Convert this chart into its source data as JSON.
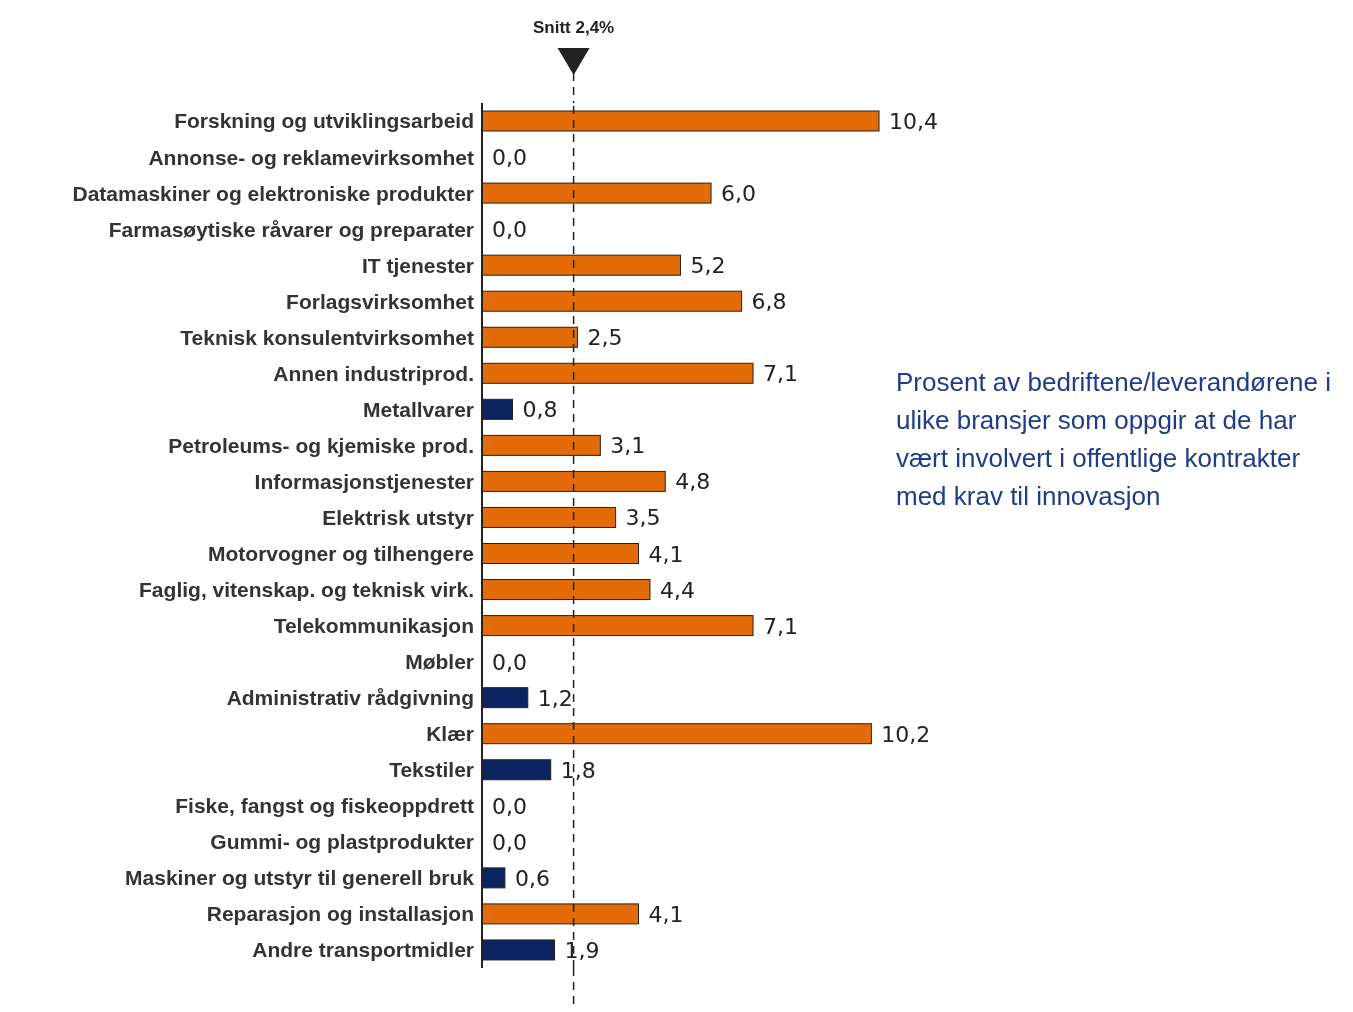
{
  "chart_data": {
    "type": "bar",
    "orientation": "horizontal",
    "categories": [
      "Forskning og utviklingsarbeid",
      "Annonse- og reklamevirksomhet",
      "Datamaskiner og elektroniske produkter",
      "Farmasøytiske råvarer og preparater",
      "IT tjenester",
      "Forlagsvirksomhet",
      "Teknisk konsulentvirksomhet",
      "Annen industriprod.",
      "Metallvarer",
      "Petroleums- og kjemiske prod.",
      "Informasjonstjenester",
      "Elektrisk utstyr",
      "Motorvogner og tilhengere",
      "Faglig, vitenskap. og teknisk virk.",
      "Telekommunikasjon",
      "Møbler",
      "Administrativ rådgivning",
      "Klær",
      "Tekstiler",
      "Fiske, fangst og fiskeoppdrett",
      "Gummi- og plastprodukter",
      "Maskiner og utstyr til generell bruk",
      "Reparasjon og installasjon",
      "Andre transportmidler"
    ],
    "values": [
      10.4,
      0,
      6.0,
      0,
      5.2,
      6.8,
      2.5,
      7.1,
      0.8,
      3.1,
      4.8,
      3.5,
      4.1,
      4.4,
      7.1,
      0,
      1.2,
      10.2,
      1.8,
      0,
      0,
      0.6,
      4.1,
      1.9
    ],
    "value_labels": [
      "10,4",
      "0,0",
      "6,0",
      "0,0",
      "5,2",
      "6,8",
      "2,5",
      "7,1",
      "0,8",
      "3,1",
      "4,8",
      "3,5",
      "4,1",
      "4,4",
      "7,1",
      "0,0",
      "1,2",
      "10,2",
      "1,8",
      "0,0",
      "0,0",
      "0,6",
      "4,1",
      "1,9"
    ],
    "colors": [
      "#e36c09",
      "#e36c09",
      "#e36c09",
      "#e36c09",
      "#e36c09",
      "#e36c09",
      "#e36c09",
      "#e36c09",
      "#0c2461",
      "#e36c09",
      "#e36c09",
      "#e36c09",
      "#e36c09",
      "#e36c09",
      "#e36c09",
      "#e36c09",
      "#0c2461",
      "#e36c09",
      "#0c2461",
      "#e36c09",
      "#e36c09",
      "#0c2461",
      "#e36c09",
      "#0c2461"
    ],
    "tick_labels": "y",
    "ref_lines": [
      {
        "axis": "x",
        "value": 2.4,
        "label": "Snitt 2,4%",
        "line_style": "dashed",
        "color": "#222222"
      }
    ],
    "annotations": [
      "Prosent av bedriftene/leverandørene i ulike bransjer som oppgir at de har vært involvert i offentlige kontrakter med krav til innovasjon"
    ]
  }
}
